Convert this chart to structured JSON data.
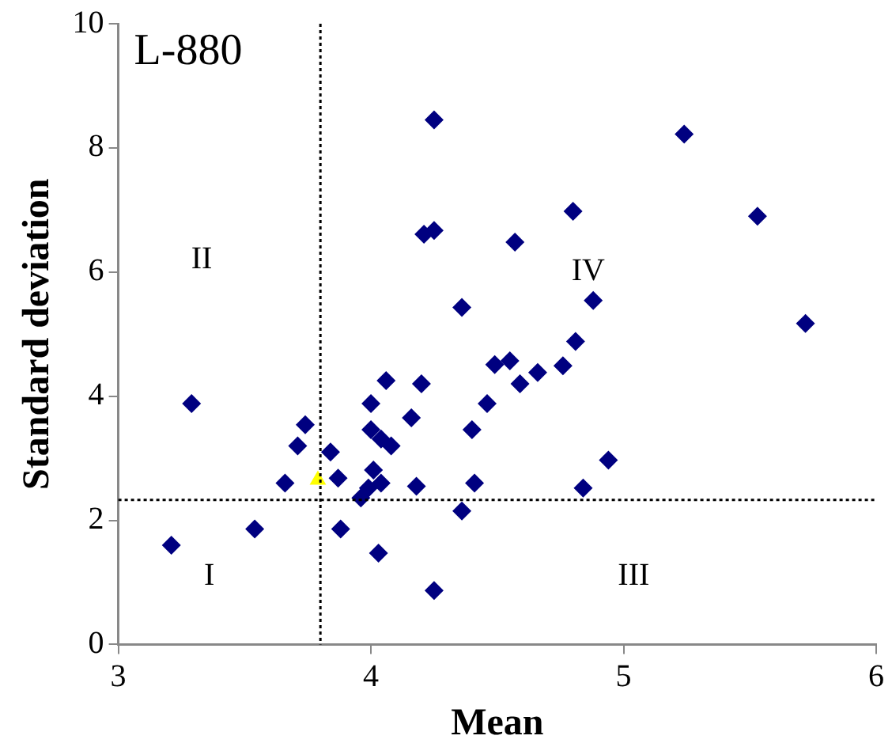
{
  "chart_data": {
    "type": "scatter",
    "title": "L-880",
    "xlabel": "Mean",
    "ylabel": "Standard deviation",
    "xlim": [
      3,
      6
    ],
    "xticks": [
      3,
      4,
      5,
      6
    ],
    "ylim": [
      0,
      10
    ],
    "yticks": [
      0,
      2,
      4,
      6,
      8,
      10
    ],
    "grid": false,
    "legend": false,
    "series": [
      {
        "color": "#000080",
        "marker": "diamond",
        "x": [
          4.25,
          4.21,
          4.25,
          4.36,
          4.49,
          3.29,
          4.06,
          4.2,
          4.0,
          4.46,
          3.74,
          4.16,
          3.71,
          4.0,
          4.04,
          4.08,
          4.4,
          3.84,
          3.66,
          3.87,
          4.01,
          4.04,
          3.99,
          3.96,
          4.18,
          4.41,
          4.36,
          3.54,
          3.88,
          4.03,
          4.25,
          3.21,
          5.24,
          4.8,
          5.53,
          4.57,
          4.88,
          5.72,
          4.81,
          4.55,
          4.76,
          4.59,
          4.66,
          4.84,
          4.94
        ],
        "values": [
          8.45,
          6.61,
          6.67,
          5.43,
          4.51,
          3.88,
          4.25,
          4.2,
          3.88,
          3.88,
          3.54,
          3.65,
          3.2,
          3.46,
          3.31,
          3.2,
          3.46,
          3.1,
          2.6,
          2.68,
          2.81,
          2.6,
          2.52,
          2.36,
          2.55,
          2.6,
          2.15,
          1.86,
          1.86,
          1.47,
          0.87,
          1.6,
          8.22,
          6.98,
          6.9,
          6.48,
          5.54,
          5.17,
          4.88,
          4.57,
          4.49,
          4.2,
          4.38,
          2.52,
          2.97
        ]
      },
      {
        "color": "#ffff00",
        "marker": "triangle",
        "x": [
          3.79
        ],
        "values": [
          2.65
        ]
      }
    ],
    "ref_lines": [
      {
        "axis": "x",
        "value": 3.8,
        "line_style": "dotted",
        "color": "#000000"
      },
      {
        "axis": "y",
        "value": 2.33,
        "line_style": "dotted",
        "color": "#000000"
      }
    ],
    "annotations": [
      "I",
      "II",
      "III",
      "IV"
    ]
  }
}
